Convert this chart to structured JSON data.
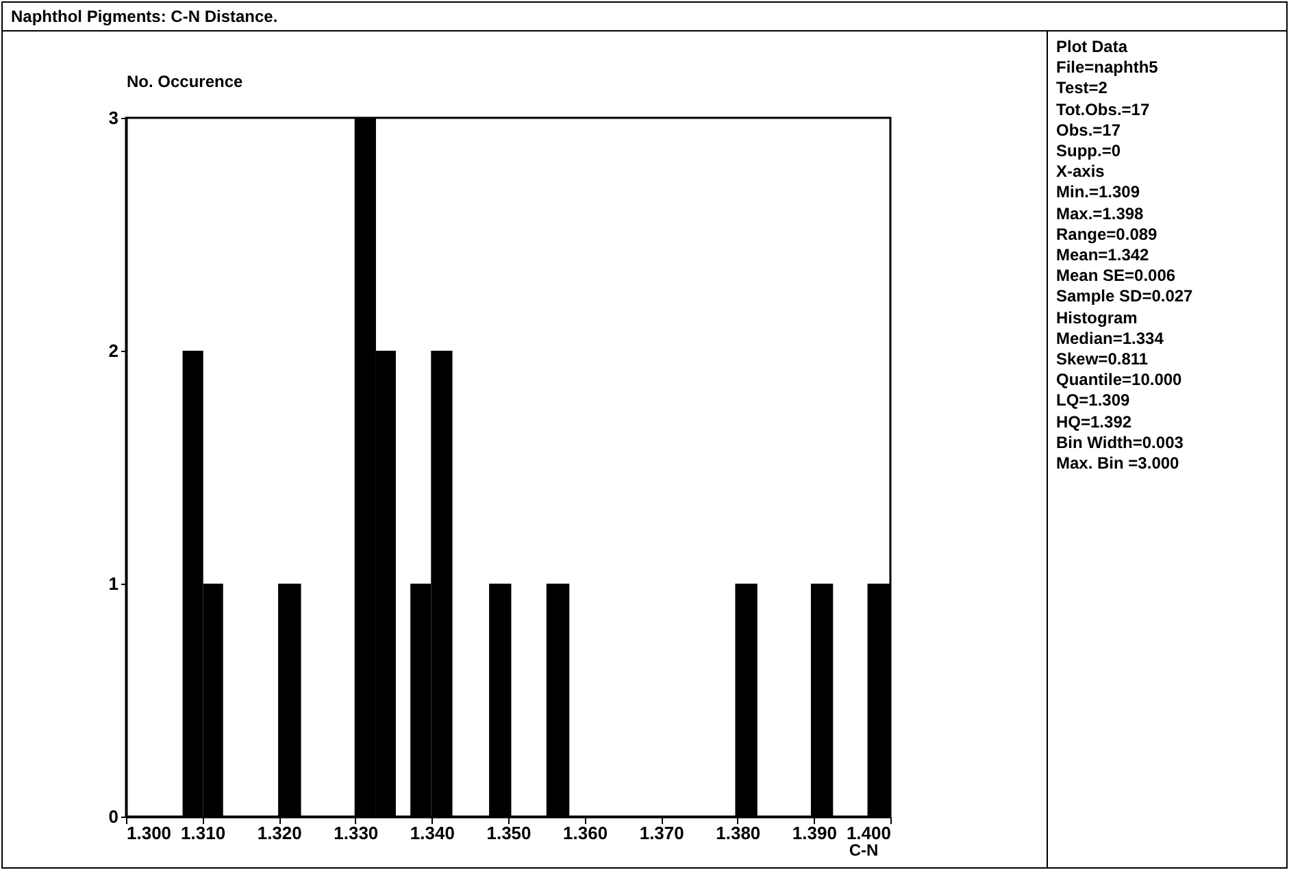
{
  "chart_data": {
    "type": "histogram",
    "title": "Naphthol Pigments: C-N Distance.",
    "xlabel": "C-N",
    "ylabel": "No. Occurence",
    "bins": [
      1.3074,
      1.3101,
      1.3127,
      1.3199,
      1.3229,
      1.3299,
      1.3327,
      1.3353,
      1.3372,
      1.3399,
      1.3427,
      1.3475,
      1.3504,
      1.355,
      1.358,
      1.3797,
      1.3826,
      1.3896,
      1.3925,
      1.397,
      1.4
    ],
    "values": [
      2,
      1,
      0,
      1,
      0,
      3,
      2,
      0,
      1,
      2,
      0,
      1,
      0,
      1,
      0,
      1,
      0,
      1,
      0,
      1
    ],
    "color": "#000000",
    "xlim": [
      1.3,
      1.4
    ],
    "xticks": [
      {
        "value": 1.3,
        "label": "1.300"
      },
      {
        "value": 1.31,
        "label": "1.310"
      },
      {
        "value": 1.32,
        "label": "1.320"
      },
      {
        "value": 1.33,
        "label": "1.330"
      },
      {
        "value": 1.34,
        "label": "1.340"
      },
      {
        "value": 1.35,
        "label": "1.350"
      },
      {
        "value": 1.36,
        "label": "1.360"
      },
      {
        "value": 1.37,
        "label": "1.370"
      },
      {
        "value": 1.38,
        "label": "1.380"
      },
      {
        "value": 1.39,
        "label": "1.390"
      },
      {
        "value": 1.4,
        "label": "1.400"
      }
    ],
    "ylim": [
      0,
      3
    ],
    "yticks": [
      0,
      1,
      2,
      3
    ],
    "grid": false,
    "annotations": [
      "Plot Data",
      "File=naphth5",
      "Test=2",
      "Tot.Obs.=17",
      "Obs.=17",
      "Supp.=0",
      "X-axis",
      "Min.=1.309",
      "Max.=1.398",
      "Range=0.089",
      "Mean=1.342",
      "Mean SE=0.006",
      "Sample SD=0.027",
      "Histogram",
      "Median=1.334",
      "Skew=0.811",
      "Quantile=10.000",
      "LQ=1.309",
      "HQ=1.392",
      "Bin Width=0.003",
      "Max. Bin =3.000"
    ]
  }
}
